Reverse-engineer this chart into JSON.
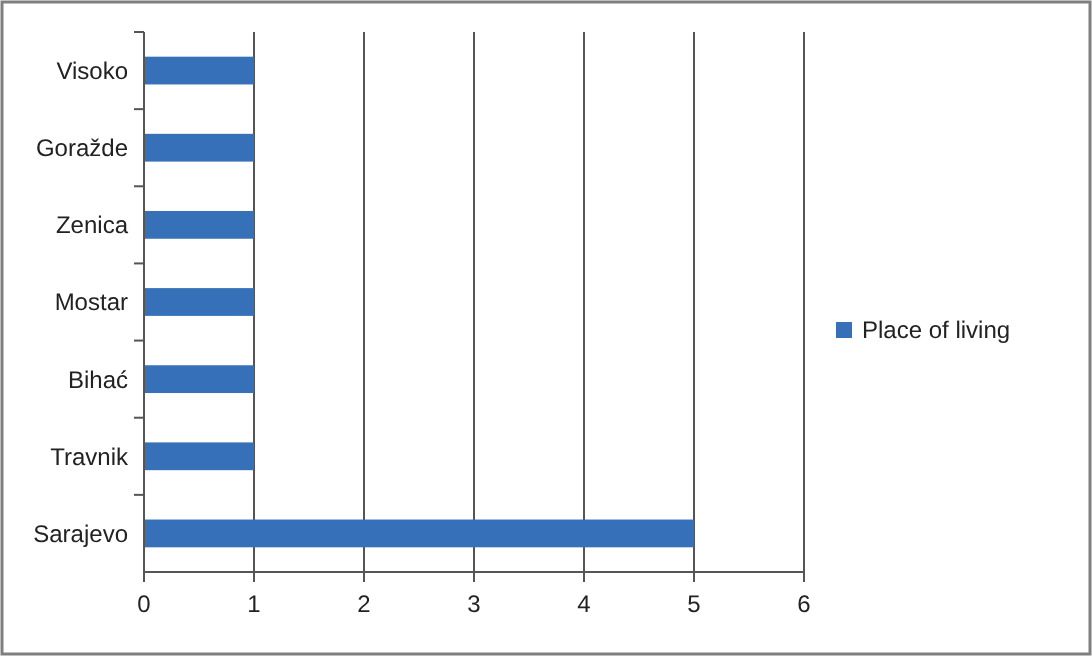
{
  "chart_data": {
    "type": "bar",
    "orientation": "horizontal",
    "categories": [
      "Visoko",
      "Goražde",
      "Zenica",
      "Mostar",
      "Bihać",
      "Travnik",
      "Sarajevo"
    ],
    "series": [
      {
        "name": "Place of living",
        "color": "#3670b8",
        "values": [
          1,
          1,
          1,
          1,
          1,
          1,
          5
        ]
      }
    ],
    "xlim": [
      0,
      6
    ],
    "xticks": [
      0,
      1,
      2,
      3,
      4,
      5,
      6
    ],
    "grid": "x",
    "legend": "right"
  }
}
